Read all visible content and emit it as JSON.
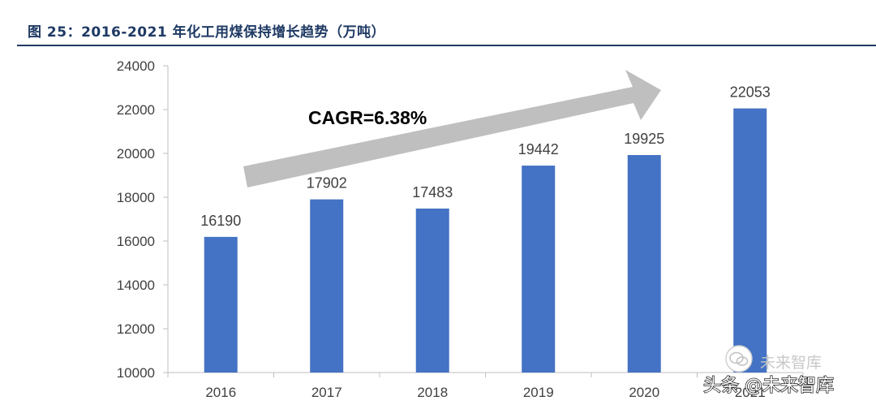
{
  "header": {
    "figure_title": "图 25：2016-2021 年化工用煤保持增长趋势（万吨）"
  },
  "annotation": {
    "cagr_label": "CAGR=6.38%"
  },
  "watermark": {
    "top_text": "未来智库",
    "bottom_text": "头条 @未来智库",
    "icon": "wechat-icon"
  },
  "colors": {
    "bar": "#4472c4",
    "arrow": "#bfbfbf",
    "title": "#1f3a64",
    "axis": "#bfbfbf",
    "text": "#404040"
  },
  "chart_data": {
    "type": "bar",
    "title": "",
    "xlabel": "",
    "ylabel": "",
    "categories": [
      "2016",
      "2017",
      "2018",
      "2019",
      "2020",
      "2021"
    ],
    "values": [
      16190,
      17902,
      17483,
      19442,
      19925,
      22053
    ],
    "ylim": [
      10000,
      24000
    ],
    "yticks": [
      10000,
      12000,
      14000,
      16000,
      18000,
      20000,
      22000,
      24000
    ],
    "grid": false,
    "legend": "none",
    "data_labels": true,
    "annotation": "CAGR=6.38%"
  }
}
